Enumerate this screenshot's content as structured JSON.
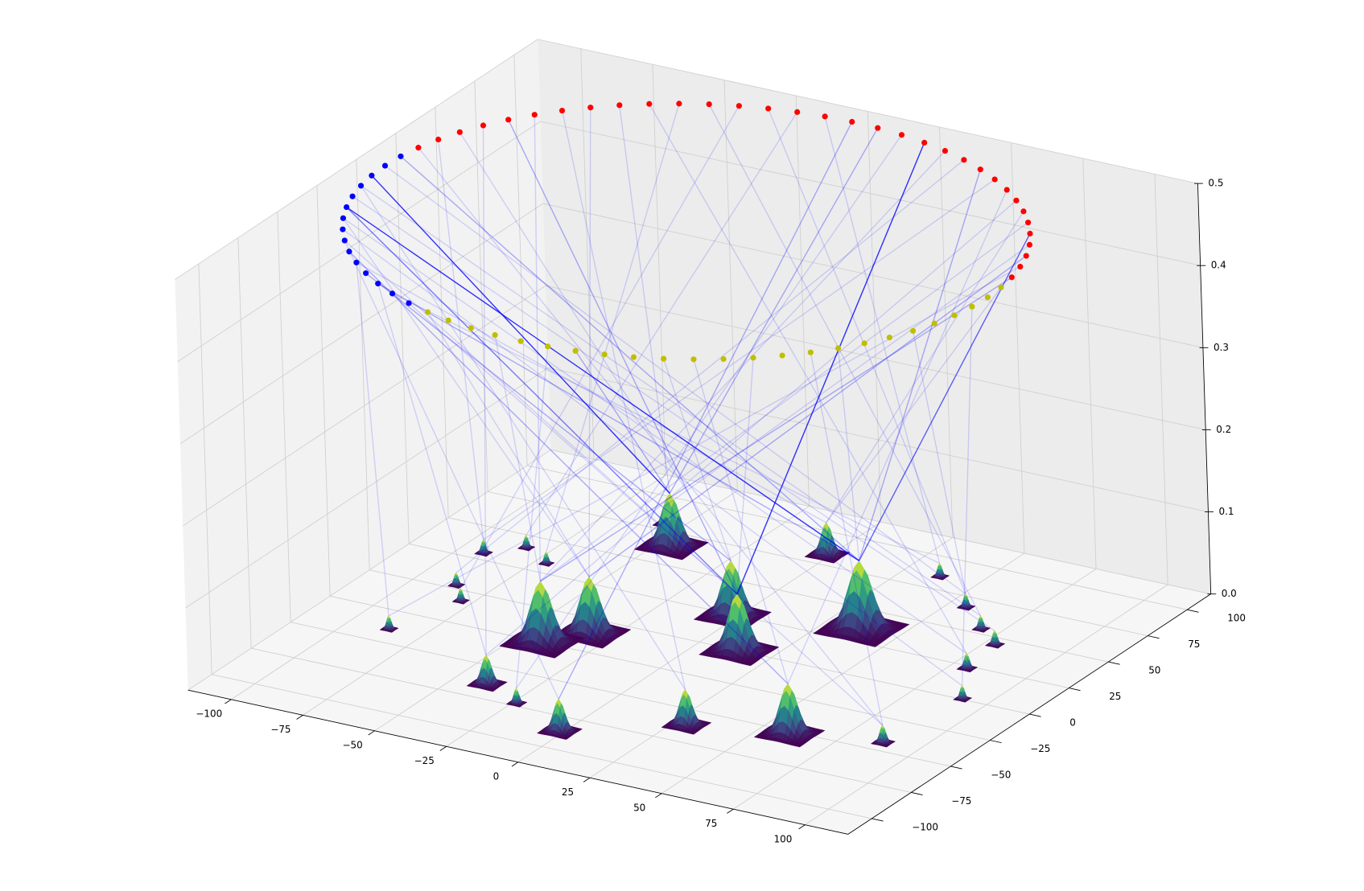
{
  "chart_data": {
    "type": "surface3d",
    "xlim": [
      -115,
      115
    ],
    "ylim": [
      -115,
      115
    ],
    "zlim": [
      0,
      0.5
    ],
    "xticks": [
      {
        "value": -100,
        "label": "−100"
      },
      {
        "value": -75,
        "label": "−75"
      },
      {
        "value": -50,
        "label": "−50"
      },
      {
        "value": -25,
        "label": "−25"
      },
      0,
      25,
      50,
      75,
      100
    ],
    "yticks": [
      {
        "value": -100,
        "label": "−100"
      },
      {
        "value": -75,
        "label": "−75"
      },
      {
        "value": -50,
        "label": "−50"
      },
      {
        "value": -25,
        "label": "−25"
      },
      0,
      25,
      50,
      75,
      100
    ],
    "zticks": [
      {
        "value": 0,
        "label": "0.0"
      },
      0.1,
      0.2,
      0.3,
      0.4,
      0.5
    ],
    "grid": true,
    "ring": [
      {
        "color": "#ff0000",
        "z": 0.5,
        "x": [
          103.4,
          101.4,
          98.7,
          95.2,
          90.9,
          86.0,
          80.4,
          74.2,
          67.5,
          60.2,
          52.5,
          44.4,
          35.9,
          27.2,
          18.2,
          9.2,
          0,
          -9.2,
          -18.2,
          -27.2,
          -35.9,
          -44.4,
          -52.5,
          -60.2,
          -67.5,
          -74.2,
          -80.4,
          -86.0,
          -90.9,
          -95.2,
          -98.7,
          -101.4,
          -103.4
        ],
        "y": [
          18.2,
          27.2,
          35.9,
          44.4,
          52.5,
          60.2,
          67.5,
          74.2,
          80.4,
          86.0,
          90.9,
          95.2,
          98.7,
          101.4,
          103.4,
          104.6,
          105,
          104.6,
          103.4,
          101.4,
          98.7,
          95.2,
          90.9,
          86.0,
          80.4,
          74.2,
          67.5,
          60.2,
          52.5,
          44.4,
          35.9,
          27.2,
          18.2
        ]
      },
      {
        "color": "#0000ff",
        "z": 0.5,
        "x": [
          -104.6,
          -105,
          -104.6,
          -103.4,
          -101.4,
          -98.7,
          -95.2,
          -90.9,
          -86.0,
          -80.4,
          -74.2,
          -67.5,
          -60.2,
          -52.5,
          -44.4
        ],
        "y": [
          9.2,
          0,
          -9.2,
          -18.2,
          -27.2,
          -35.9,
          -44.4,
          -52.5,
          -60.2,
          -67.5,
          -74.2,
          -80.4,
          -86.0,
          -90.9,
          -95.2
        ]
      },
      {
        "color": "#bfbf00",
        "z": 0.5,
        "x": [
          -35.9,
          -27.2,
          -18.2,
          -9.2,
          0,
          9.2,
          18.2,
          27.2,
          35.9,
          44.4,
          52.5,
          60.2,
          67.5,
          74.2,
          80.4,
          86.0,
          90.9,
          95.2,
          98.7,
          101.4,
          103.4,
          104.6,
          105,
          104.6
        ],
        "y": [
          -98.7,
          -101.4,
          -103.4,
          -104.6,
          -105,
          -104.6,
          -103.4,
          -101.4,
          -98.7,
          -95.2,
          -90.9,
          -86.0,
          -80.4,
          -74.2,
          -67.5,
          -60.2,
          -52.5,
          -44.4,
          -35.9,
          -27.2,
          -18.2,
          -9.2,
          0,
          9.2
        ]
      }
    ],
    "peaks": {
      "colormap": "viridis",
      "x": [
        -86.5,
        -86.2,
        -78.8,
        -91.8,
        -82.7,
        -71.2,
        -39.1,
        -23.7,
        -1.4,
        -41.2,
        -31.9,
        -45.4,
        -55.8,
        -1.7,
        13.8,
        -1.1,
        37.2,
        29.4,
        59.9,
        87.9,
        37.1,
        56.0,
        68.6,
        78.5,
        80.5,
        91.4
      ],
      "y": [
        -39.4,
        2.7,
        -7.9,
        30.2,
        40.7,
        32.5,
        -63.6,
        -72.8,
        -86.1,
        -24.7,
        -10.8,
        64.8,
        79.4,
        24.1,
        -0.1,
        83.0,
        34.9,
        -61.8,
        -51.9,
        -43.5,
        85.0,
        67.1,
        53.7,
        44.6,
        23.2,
        0.5
      ],
      "z": [
        0.016,
        0.015,
        0.015,
        0.016,
        0.015,
        0.014,
        0.035,
        0.018,
        0.039,
        0.074,
        0.069,
        0.064,
        0.021,
        0.067,
        0.069,
        0.039,
        0.083,
        0.043,
        0.061,
        0.021,
        0.016,
        0.016,
        0.016,
        0.017,
        0.018,
        0.016
      ]
    },
    "link_color": "#0000ff",
    "links": [
      [
        1,
        2,
        11,
        0.8
      ],
      [
        1,
        5,
        16,
        0.8
      ],
      [
        1,
        5,
        14,
        0.5
      ],
      [
        0,
        13,
        14,
        0.8
      ],
      [
        0,
        4,
        16,
        0.6
      ],
      [
        1,
        0,
        16,
        0.3
      ],
      [
        1,
        1,
        21,
        0.15
      ],
      [
        1,
        3,
        22,
        0.15
      ],
      [
        1,
        4,
        23,
        0.15
      ],
      [
        1,
        6,
        24,
        0.15
      ],
      [
        1,
        7,
        25,
        0.15
      ],
      [
        1,
        8,
        19,
        0.15
      ],
      [
        1,
        9,
        18,
        0.3
      ],
      [
        1,
        10,
        15,
        0.15
      ],
      [
        1,
        11,
        13,
        0.3
      ],
      [
        1,
        12,
        16,
        0.3
      ],
      [
        1,
        13,
        20,
        0.15
      ],
      [
        1,
        14,
        14,
        0.15
      ],
      [
        1,
        3,
        17,
        0.15
      ],
      [
        1,
        6,
        10,
        0.15
      ],
      [
        1,
        8,
        8,
        0.15
      ],
      [
        1,
        10,
        0,
        0.15
      ],
      [
        1,
        12,
        6,
        0.15
      ],
      [
        0,
        0,
        9,
        0.3
      ],
      [
        0,
        2,
        10,
        0.3
      ],
      [
        0,
        5,
        9,
        0.15
      ],
      [
        0,
        7,
        6,
        0.15
      ],
      [
        0,
        9,
        3,
        0.15
      ],
      [
        0,
        11,
        1,
        0.15
      ],
      [
        0,
        14,
        7,
        0.15
      ],
      [
        0,
        16,
        8,
        0.3
      ],
      [
        0,
        18,
        4,
        0.15
      ],
      [
        0,
        20,
        2,
        0.15
      ],
      [
        0,
        22,
        5,
        0.15
      ],
      [
        0,
        24,
        11,
        0.15
      ],
      [
        0,
        26,
        17,
        0.15
      ],
      [
        0,
        28,
        14,
        0.3
      ],
      [
        0,
        30,
        13,
        0.15
      ],
      [
        0,
        32,
        19,
        0.15
      ],
      [
        0,
        1,
        0,
        0.15
      ],
      [
        0,
        3,
        12,
        0.15
      ],
      [
        0,
        6,
        15,
        0.15
      ],
      [
        0,
        8,
        18,
        0.15
      ],
      [
        0,
        10,
        16,
        0.3
      ],
      [
        0,
        12,
        9,
        0.15
      ],
      [
        0,
        15,
        11,
        0.3
      ],
      [
        0,
        17,
        20,
        0.15
      ],
      [
        0,
        19,
        21,
        0.15
      ],
      [
        0,
        21,
        22,
        0.15
      ],
      [
        0,
        23,
        24,
        0.15
      ],
      [
        0,
        25,
        10,
        0.15
      ],
      [
        0,
        27,
        9,
        0.15
      ],
      [
        0,
        29,
        6,
        0.15
      ],
      [
        0,
        31,
        3,
        0.15
      ],
      [
        2,
        0,
        10,
        0.15
      ],
      [
        2,
        3,
        9,
        0.15
      ],
      [
        2,
        6,
        11,
        0.3
      ],
      [
        2,
        9,
        13,
        0.15
      ],
      [
        2,
        12,
        14,
        0.15
      ],
      [
        2,
        15,
        16,
        0.15
      ],
      [
        2,
        18,
        21,
        0.15
      ],
      [
        2,
        21,
        25,
        0.15
      ],
      [
        2,
        23,
        15,
        0.15
      ],
      [
        2,
        5,
        7,
        0.15
      ],
      [
        2,
        10,
        18,
        0.15
      ],
      [
        2,
        14,
        19,
        0.15
      ]
    ]
  }
}
